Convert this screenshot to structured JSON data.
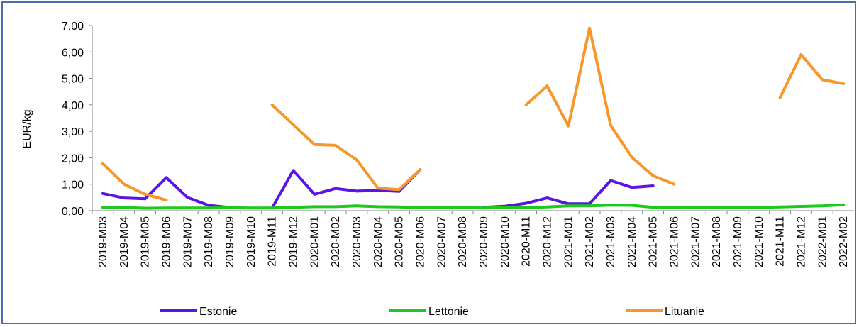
{
  "chart_data": {
    "type": "line",
    "ylabel": "EUR/kg",
    "ylim": [
      0,
      7
    ],
    "yticks": [
      "0,00",
      "1,00",
      "2,00",
      "3,00",
      "4,00",
      "5,00",
      "6,00",
      "7,00"
    ],
    "legend_position": "bottom",
    "grid": false,
    "categories": [
      "2019-M03",
      "2019-M04",
      "2019-M05",
      "2019-M06",
      "2019-M07",
      "2019-M08",
      "2019-M09",
      "2019-M10",
      "2019-M11",
      "2019-M12",
      "2020-M01",
      "2020-M02",
      "2020-M03",
      "2020-M04",
      "2020-M05",
      "2020-M06",
      "2020-M07",
      "2020-M08",
      "2020-M09",
      "2020-M10",
      "2020-M11",
      "2020-M12",
      "2021-M01",
      "2021-M02",
      "2021-M03",
      "2021-M04",
      "2021-M05",
      "2021-M06",
      "2021-M07",
      "2021-M08",
      "2021-M09",
      "2021-M10",
      "2021-M11",
      "2021-M12",
      "2022-M01",
      "2022-M02"
    ],
    "series": [
      {
        "name": "Estonie",
        "color": "#5b14e6",
        "values": [
          0.65,
          0.48,
          0.45,
          1.25,
          0.5,
          0.2,
          0.12,
          null,
          0.1,
          1.52,
          0.62,
          0.84,
          0.74,
          0.77,
          0.73,
          1.55,
          null,
          null,
          0.13,
          0.17,
          0.28,
          0.48,
          0.26,
          0.26,
          1.14,
          0.88,
          0.94,
          null,
          null,
          null,
          null,
          null,
          null,
          null,
          null,
          0.24
        ]
      },
      {
        "name": "Lettonie",
        "color": "#1ec81e",
        "values": [
          0.12,
          0.12,
          0.09,
          0.1,
          0.1,
          0.1,
          0.11,
          0.1,
          0.1,
          0.13,
          0.15,
          0.15,
          0.18,
          0.15,
          0.14,
          0.11,
          0.12,
          0.12,
          0.1,
          0.12,
          0.12,
          0.14,
          0.18,
          0.18,
          0.21,
          0.2,
          0.13,
          0.11,
          0.11,
          0.13,
          0.12,
          0.12,
          0.14,
          0.16,
          0.18,
          0.22
        ]
      },
      {
        "name": "Lituanie",
        "color": "#f7962a",
        "values": [
          1.78,
          1.0,
          0.62,
          0.4,
          null,
          null,
          null,
          null,
          4.0,
          3.25,
          2.5,
          2.47,
          1.92,
          0.85,
          0.8,
          1.55,
          null,
          null,
          null,
          null,
          4.0,
          4.72,
          3.2,
          6.9,
          3.22,
          2.02,
          1.32,
          1.0,
          null,
          null,
          null,
          null,
          4.27,
          5.9,
          4.95,
          4.8
        ]
      }
    ]
  }
}
